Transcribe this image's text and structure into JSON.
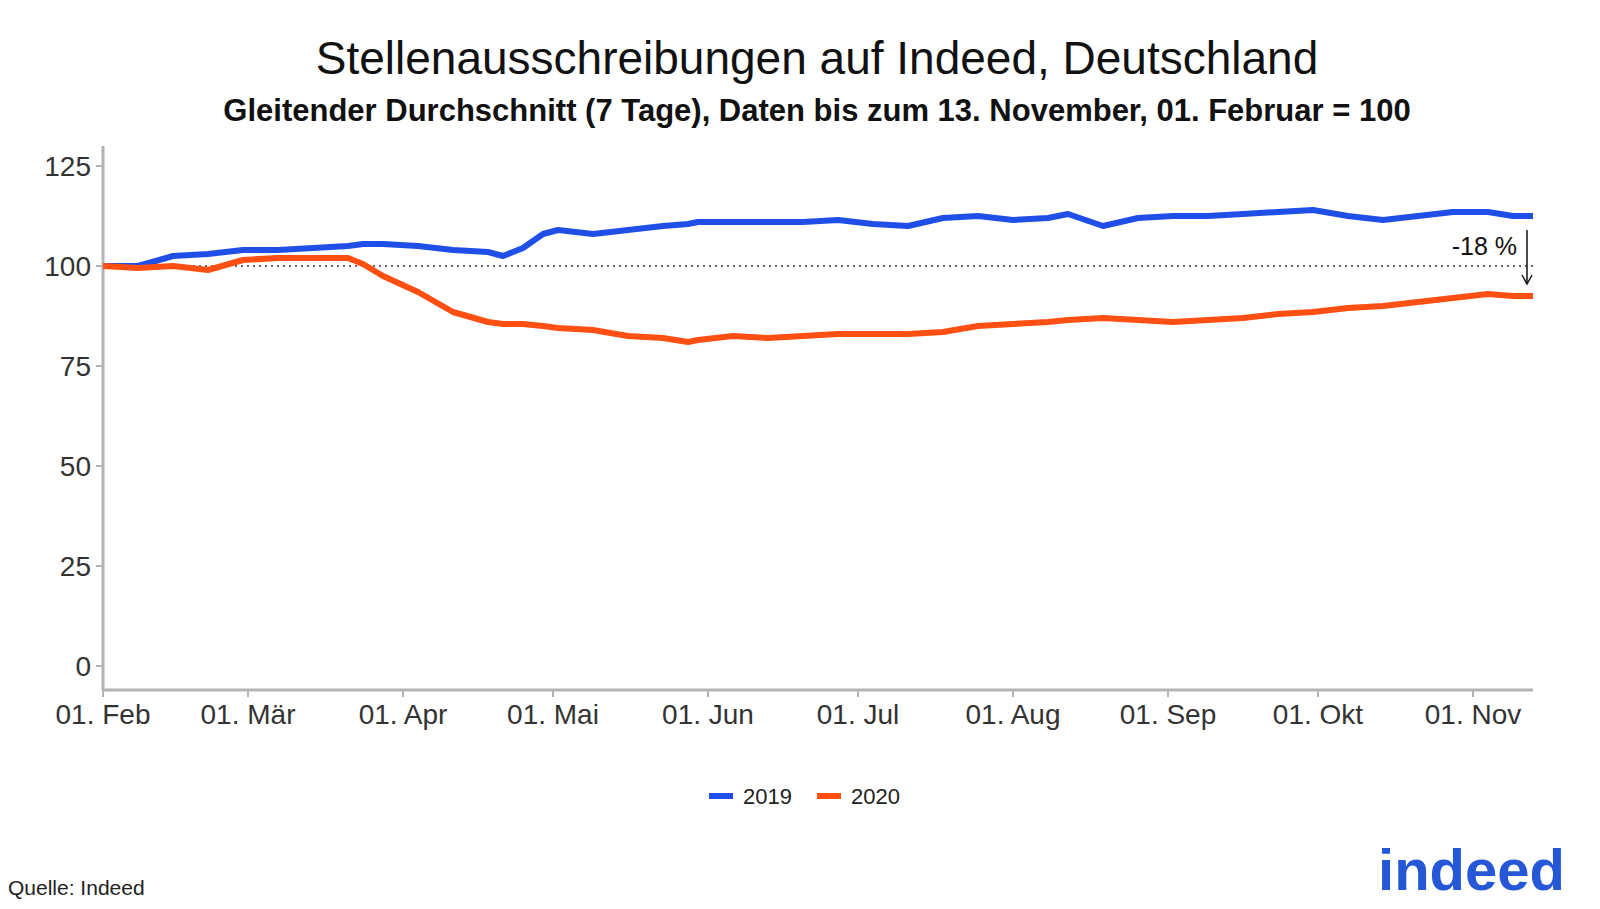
{
  "chart_data": {
    "type": "line",
    "title": "Stellenausschreibungen auf Indeed, Deutschland",
    "subtitle": "Gleitender Durchschnitt (7 Tage), Daten bis zum 13. November, 01. Februar = 100",
    "x": [
      0,
      7,
      14,
      21,
      28,
      35,
      42,
      49,
      52,
      56,
      63,
      70,
      77,
      80,
      84,
      88,
      91,
      98,
      105,
      112,
      117,
      119,
      126,
      133,
      140,
      147,
      154,
      161,
      168,
      175,
      182,
      189,
      193,
      200,
      207,
      214,
      221,
      228,
      235,
      242,
      249,
      256,
      263,
      270,
      277,
      282,
      286
    ],
    "series": [
      {
        "name": "2019",
        "color": "#1f4fe6",
        "values": [
          100,
          100,
          102.5,
          103,
          104,
          104,
          104.5,
          105,
          105.5,
          105.5,
          105,
          104,
          103.5,
          102.5,
          104.5,
          108,
          109,
          108,
          109,
          110,
          110.5,
          111,
          111,
          111,
          111,
          111.5,
          110.5,
          110,
          112,
          112.5,
          111.5,
          112,
          113,
          110,
          112,
          112.5,
          112.5,
          113,
          113.5,
          114,
          112.5,
          111.5,
          112.5,
          113.5,
          113.5,
          112.5,
          112.5
        ]
      },
      {
        "name": "2020",
        "color": "#ff4f12",
        "values": [
          100,
          99.5,
          100,
          99,
          101.5,
          102,
          102,
          102,
          100.5,
          97.5,
          93.5,
          88.5,
          86,
          85.5,
          85.5,
          85,
          84.5,
          84,
          82.5,
          82,
          81,
          81.5,
          82.5,
          82,
          82.5,
          83,
          83,
          83,
          83.5,
          85,
          85.5,
          86,
          86.5,
          87,
          86.5,
          86,
          86.5,
          87,
          88,
          88.5,
          89.5,
          90,
          91,
          92,
          93,
          92.5,
          92.5
        ]
      }
    ],
    "xlim": [
      0,
      286
    ],
    "xticks": [
      {
        "value": 0,
        "label": "01. Feb"
      },
      {
        "value": 29,
        "label": "01. Mär"
      },
      {
        "value": 60,
        "label": "01. Apr"
      },
      {
        "value": 90,
        "label": "01. Mai"
      },
      {
        "value": 121,
        "label": "01. Jun"
      },
      {
        "value": 151,
        "label": "01. Jul"
      },
      {
        "value": 182,
        "label": "01. Aug"
      },
      {
        "value": 213,
        "label": "01. Sep"
      },
      {
        "value": 243,
        "label": "01. Okt"
      },
      {
        "value": 274,
        "label": "01. Nov"
      }
    ],
    "ylim": [
      -6,
      130
    ],
    "yticks": [
      0,
      25,
      50,
      75,
      100,
      125
    ],
    "grid": false,
    "legend": "bottom",
    "reference_line": 100,
    "annotations": [
      {
        "text": "-18 %",
        "x": 286,
        "y_start": 109,
        "y_end": 95.5
      }
    ],
    "source": "Quelle: Indeed",
    "logo": "indeed"
  }
}
